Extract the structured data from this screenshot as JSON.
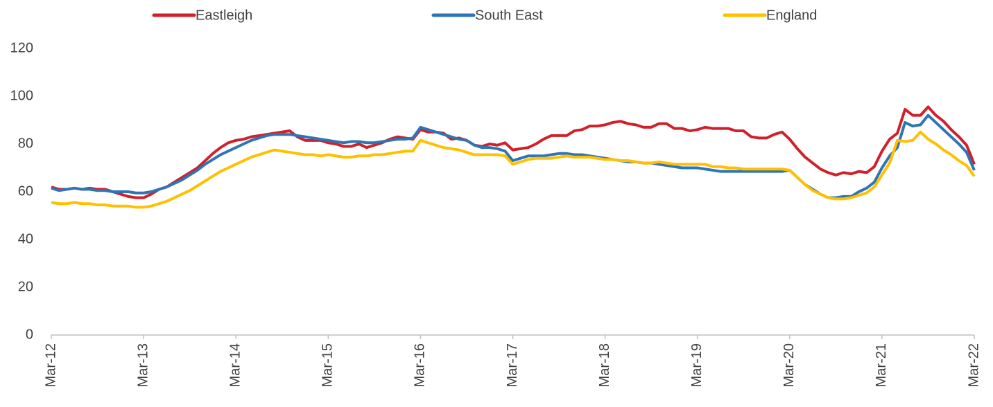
{
  "chart_data": {
    "type": "line",
    "categories": [
      "Mar-12",
      null,
      null,
      null,
      null,
      null,
      null,
      null,
      null,
      null,
      null,
      null,
      "Mar-13",
      null,
      null,
      null,
      null,
      null,
      null,
      null,
      null,
      null,
      null,
      null,
      "Mar-14",
      null,
      null,
      null,
      null,
      null,
      null,
      null,
      null,
      null,
      null,
      null,
      "Mar-15",
      null,
      null,
      null,
      null,
      null,
      null,
      null,
      null,
      null,
      null,
      null,
      "Mar-16",
      null,
      null,
      null,
      null,
      null,
      null,
      null,
      null,
      null,
      null,
      null,
      "Mar-17",
      null,
      null,
      null,
      null,
      null,
      null,
      null,
      null,
      null,
      null,
      null,
      "Mar-18",
      null,
      null,
      null,
      null,
      null,
      null,
      null,
      null,
      null,
      null,
      null,
      "Mar-19",
      null,
      null,
      null,
      null,
      null,
      null,
      null,
      null,
      null,
      null,
      null,
      "Mar-20",
      null,
      null,
      null,
      null,
      null,
      null,
      null,
      null,
      null,
      null,
      null,
      "Mar-21",
      null,
      null,
      null,
      null,
      null,
      null,
      null,
      null,
      null,
      null,
      null,
      "Mar-22"
    ],
    "series": [
      {
        "name": "Eastleigh",
        "color": "#d0202a",
        "values": [
          62,
          61,
          61,
          61.5,
          61,
          61.5,
          61,
          61,
          60,
          59,
          58,
          57.5,
          57.5,
          59,
          61,
          62,
          64,
          66,
          68,
          70,
          73,
          76,
          78.5,
          80.5,
          81.5,
          82,
          83,
          83.5,
          84,
          84.5,
          85,
          85.5,
          83,
          81.5,
          81.5,
          81.5,
          80.5,
          80,
          79,
          79,
          80,
          78.5,
          79.5,
          80.5,
          82,
          83,
          82.5,
          82,
          86,
          85,
          85,
          84.5,
          82,
          82.5,
          81.5,
          79.5,
          79,
          80,
          79.5,
          80.5,
          77.5,
          78,
          78.5,
          80,
          82,
          83.5,
          83.5,
          83.5,
          85.5,
          86,
          87.5,
          87.5,
          88,
          89,
          89.5,
          88.5,
          88,
          87,
          87,
          88.5,
          88.5,
          86.5,
          86.5,
          85.5,
          86,
          87,
          86.5,
          86.5,
          86.5,
          85.5,
          85.5,
          83,
          82.5,
          82.5,
          84,
          85,
          82,
          78,
          74.5,
          72,
          69.5,
          68,
          67,
          68,
          67.5,
          68.5,
          68,
          70.5,
          77,
          82,
          84.5,
          94.5,
          92,
          92,
          95.5,
          92,
          89.5,
          86,
          83,
          79.5,
          71.5
        ]
      },
      {
        "name": "South East",
        "color": "#2e75b6",
        "values": [
          61.5,
          60.5,
          61,
          61.5,
          61,
          61,
          60.5,
          60.5,
          60,
          60,
          60,
          59.5,
          59.5,
          60,
          61,
          62,
          63.5,
          65,
          67,
          69,
          71.5,
          73.5,
          75.5,
          77,
          78.5,
          80,
          81.5,
          82.5,
          83.5,
          84,
          84,
          84,
          83.5,
          83,
          82.5,
          82,
          81.5,
          81,
          80.5,
          81,
          81,
          80.5,
          80.5,
          81,
          81.5,
          82,
          82,
          82.5,
          87,
          86,
          85,
          84,
          83,
          82,
          81.5,
          79.5,
          78.5,
          78.5,
          78,
          77,
          73,
          74,
          75,
          75,
          75,
          75.5,
          76,
          76,
          75.5,
          75.5,
          75,
          74.5,
          74,
          73.5,
          73,
          72.5,
          72.5,
          72,
          72,
          71.5,
          71,
          70.5,
          70,
          70,
          70,
          69.5,
          69,
          68.5,
          68.5,
          68.5,
          68.5,
          68.5,
          68.5,
          68.5,
          68.5,
          68.5,
          69,
          66,
          63,
          61,
          59,
          57.5,
          57.5,
          58,
          58,
          60,
          61.5,
          64,
          70,
          75,
          78.5,
          89,
          87.5,
          88,
          92,
          89,
          86,
          83,
          80,
          76.5,
          69
        ]
      },
      {
        "name": "England",
        "color": "#ffc000",
        "values": [
          55.5,
          55,
          55,
          55.5,
          55,
          55,
          54.5,
          54.5,
          54,
          54,
          54,
          53.5,
          53.5,
          54,
          55,
          56,
          57.5,
          59,
          60.5,
          62.5,
          64.5,
          66.5,
          68.5,
          70,
          71.5,
          73,
          74.5,
          75.5,
          76.5,
          77.5,
          77,
          76.5,
          76,
          75.5,
          75.5,
          75,
          75.5,
          75,
          74.5,
          74.5,
          75,
          75,
          75.5,
          75.5,
          76,
          76.5,
          77,
          77,
          81.5,
          80.5,
          79.5,
          78.5,
          78,
          77.5,
          76.5,
          75.5,
          75.5,
          75.5,
          75.5,
          75,
          71.5,
          72.5,
          73.5,
          74,
          74,
          74,
          74.5,
          75,
          74.5,
          74.5,
          74.5,
          74,
          73.5,
          73.5,
          73,
          73,
          72.5,
          72,
          72,
          72.5,
          72,
          71.5,
          71.5,
          71.5,
          71.5,
          71.5,
          70.5,
          70.5,
          70,
          70,
          69.5,
          69.5,
          69.5,
          69.5,
          69.5,
          69.5,
          69,
          66,
          63,
          60.5,
          59,
          57.5,
          57,
          57,
          57.5,
          58.5,
          59.5,
          62,
          67,
          72,
          81.5,
          81,
          81.5,
          85,
          82,
          80,
          77.5,
          75.5,
          73,
          71,
          66.5
        ]
      }
    ],
    "ylim": [
      0,
      120
    ],
    "yticks": [
      0,
      20,
      40,
      60,
      80,
      100,
      120
    ],
    "grid": false,
    "legend": "top"
  }
}
